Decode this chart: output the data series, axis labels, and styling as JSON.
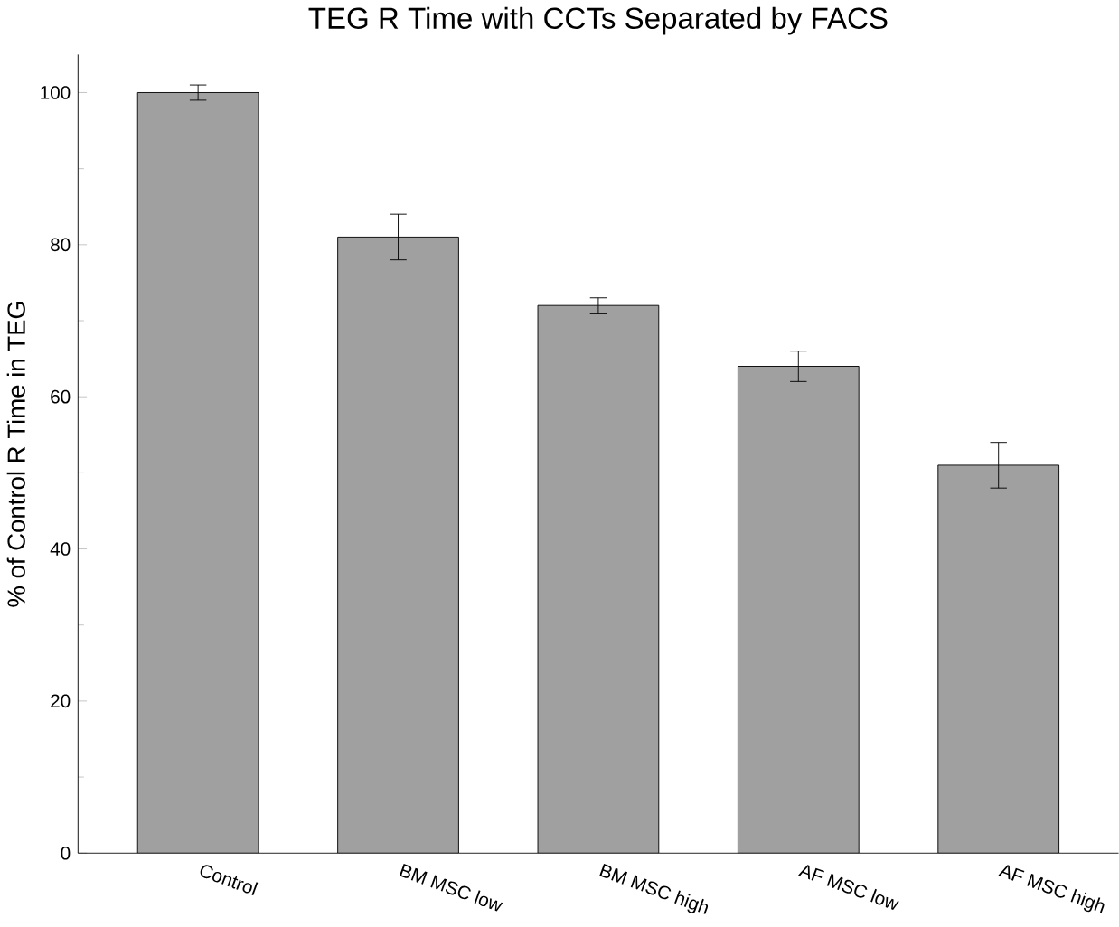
{
  "chart_data": {
    "type": "bar",
    "title": "TEG R Time with CCTs Separated by FACS",
    "ylabel": "% of Control R Time in TEG",
    "categories": [
      "Control",
      "BM MSC low",
      "BM MSC high",
      "AF MSC low",
      "AF MSC high"
    ],
    "values": [
      100,
      81,
      72,
      64,
      51
    ],
    "errors": [
      1,
      3,
      1,
      2,
      3
    ],
    "color": "#a0a0a0",
    "ylim": [
      0,
      105
    ],
    "yticks": [
      0,
      20,
      40,
      60,
      80,
      100
    ]
  }
}
